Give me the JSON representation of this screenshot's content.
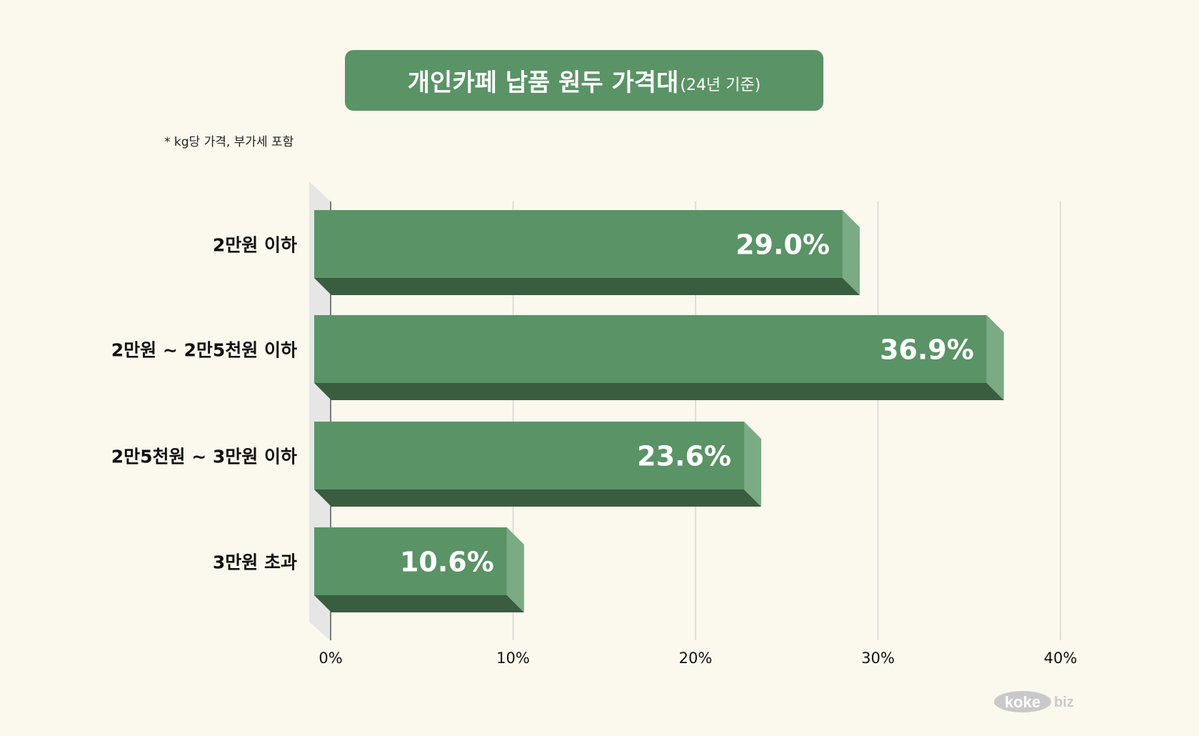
{
  "title": "개인카페 납품 원두 가격대",
  "subtitle": "(24년 기준)",
  "note": "* kg당 가격, 부가세 포함",
  "logo": {
    "part1": "koke",
    "part2": "biz"
  },
  "colors": {
    "background": "#fbf8ee",
    "bar_front": "#5a9366",
    "bar_side": "#7aab83",
    "bar_bottom": "#3a5d40",
    "grid": "#d6d6d0",
    "wall": "#e6e6e6"
  },
  "chart_data": {
    "type": "bar",
    "orientation": "horizontal",
    "categories": [
      "2만원 이하",
      "2만원 ~ 2만5천원 이하",
      "2만5천원 ~ 3만원 이하",
      "3만원 초과"
    ],
    "values": [
      29.0,
      36.9,
      23.6,
      10.6
    ],
    "value_labels": [
      "29.0%",
      "36.9%",
      "23.6%",
      "10.6%"
    ],
    "xlim": [
      0,
      40
    ],
    "xticks": [
      "0%",
      "10%",
      "20%",
      "30%",
      "40%"
    ],
    "xtick_values": [
      0,
      10,
      20,
      30,
      40
    ],
    "grid": true,
    "style": "3d"
  }
}
